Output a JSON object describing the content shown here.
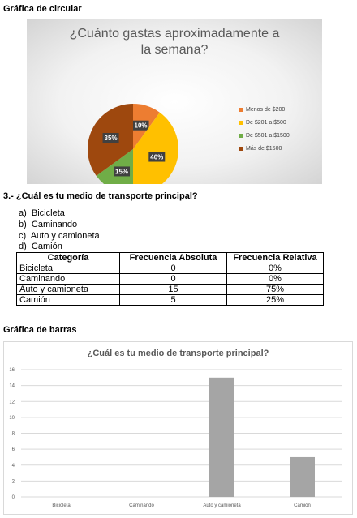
{
  "pie_section": {
    "heading": "Gráfica de circular"
  },
  "question3": {
    "heading": "3.- ¿Cuál es tu medio de transporte principal?",
    "options": [
      {
        "letter": "a)",
        "text": "Bicicleta"
      },
      {
        "letter": "b)",
        "text": "Caminando"
      },
      {
        "letter": "c)",
        "text": "Auto y camioneta"
      },
      {
        "letter": "d)",
        "text": "Camión"
      }
    ]
  },
  "table": {
    "headers": [
      "Categoría",
      "Frecuencia Absoluta",
      "Frecuencia Relativa"
    ],
    "rows": [
      [
        "Bicicleta",
        "0",
        "0%"
      ],
      [
        "Caminando",
        "0",
        "0%"
      ],
      [
        "Auto y camioneta",
        "15",
        "75%"
      ],
      [
        "Camión",
        "5",
        "25%"
      ]
    ]
  },
  "bar_section": {
    "heading": "Gráfica de barras"
  },
  "chart_data": [
    {
      "type": "pie",
      "title_lines": [
        "¿Cuánto gastas aproximadamente a",
        "la semana?"
      ],
      "categories": [
        "Menos de $200",
        "De $201 a $500",
        "De $501 a $1500",
        "Más de $1500"
      ],
      "values": [
        10,
        40,
        15,
        35
      ],
      "labels": [
        "10%",
        "40%",
        "15%",
        "35%"
      ],
      "colors": [
        "#ed7d31",
        "#ffc000",
        "#70ad47",
        "#9e480e"
      ],
      "legend": "right"
    },
    {
      "type": "bar",
      "title": "¿Cuál es tu medio de transporte principal?",
      "categories": [
        "Bicicleta",
        "Caminando",
        "Auto y camioneta",
        "Camión"
      ],
      "values": [
        0,
        0,
        15,
        5
      ],
      "ylim": [
        0,
        16
      ],
      "yticks": [
        "0",
        "2",
        "4",
        "6",
        "8",
        "10",
        "12",
        "14",
        "16"
      ],
      "bar_color": "#a5a5a5",
      "grid": true
    }
  ]
}
